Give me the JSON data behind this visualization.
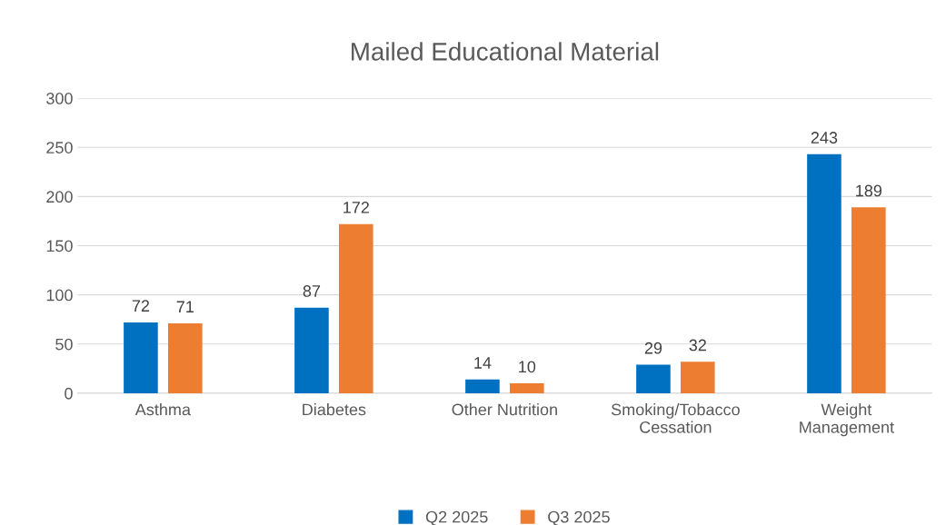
{
  "chart_data": {
    "type": "bar",
    "title": "Mailed Educational Material",
    "categories": [
      "Asthma",
      "Diabetes",
      "Other Nutrition",
      "Smoking/Tobacco\nCessation",
      "Weight\nManagement"
    ],
    "series": [
      {
        "name": "Q2 2025",
        "color": "#0070c0",
        "values": [
          72,
          87,
          14,
          29,
          243
        ]
      },
      {
        "name": "Q3 2025",
        "color": "#ed7d31",
        "values": [
          71,
          172,
          10,
          32,
          189
        ]
      }
    ],
    "ylim": [
      0,
      300
    ],
    "yticks": [
      0,
      50,
      100,
      150,
      200,
      250,
      300
    ],
    "grid": "y",
    "legend": "bottom",
    "data_labels": true
  }
}
